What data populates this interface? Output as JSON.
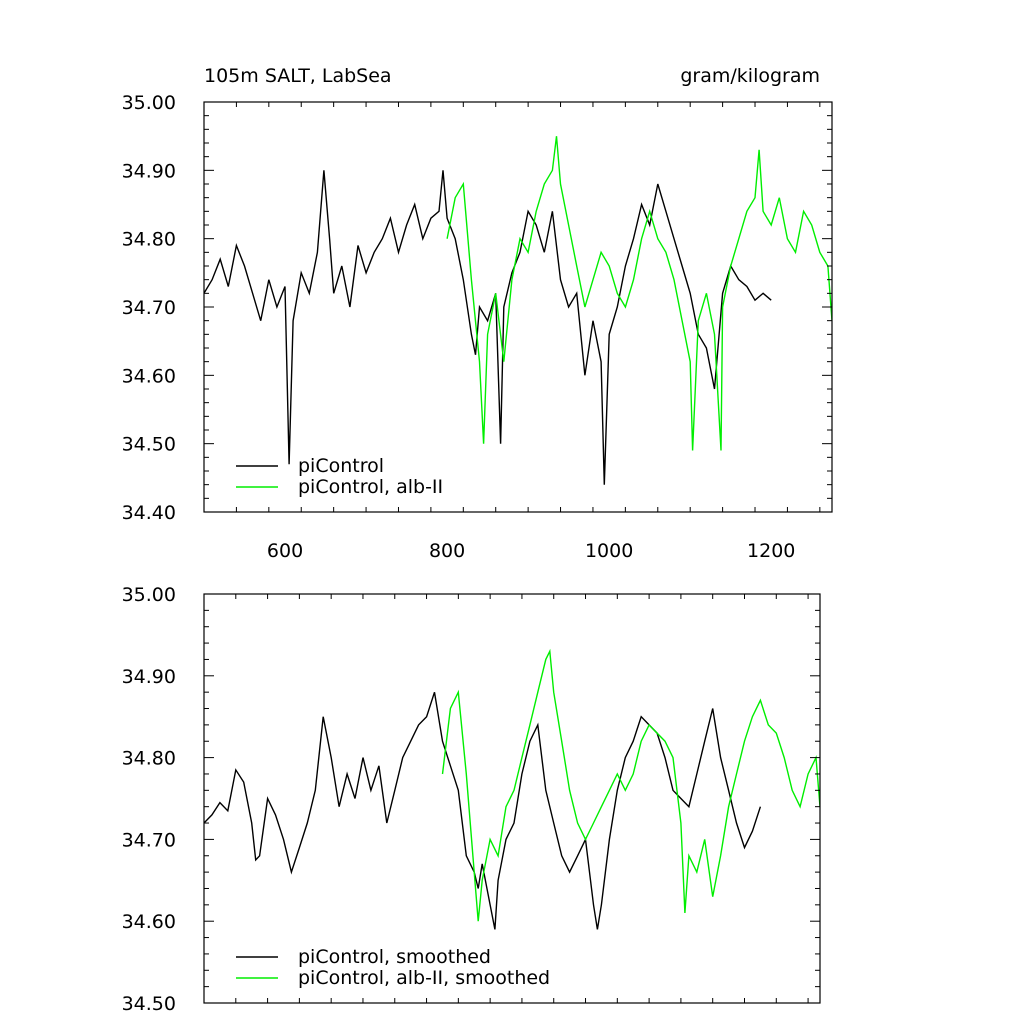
{
  "chart_data": [
    {
      "type": "line",
      "title": "105m SALT, LabSea",
      "units": "gram/kilogram",
      "xlim": [
        500,
        1275
      ],
      "ylim": [
        34.4,
        35.0
      ],
      "xticks": [
        600,
        800,
        1000,
        1200
      ],
      "xtick_labels": [
        "600",
        "800",
        "1000",
        "1200"
      ],
      "yticks": [
        34.4,
        34.5,
        34.6,
        34.7,
        34.8,
        34.9,
        35.0
      ],
      "ytick_labels": [
        "34.40",
        "34.50",
        "34.60",
        "34.70",
        "34.80",
        "34.90",
        "35.00"
      ],
      "legend_position": "bottom-left",
      "series": [
        {
          "name": "piControl",
          "color": "#000000",
          "x": [
            500,
            510,
            520,
            530,
            540,
            550,
            560,
            570,
            580,
            590,
            600,
            605,
            610,
            620,
            630,
            640,
            648,
            655,
            660,
            670,
            680,
            690,
            700,
            710,
            720,
            730,
            740,
            750,
            760,
            770,
            780,
            790,
            795,
            800,
            810,
            820,
            830,
            835,
            840,
            850,
            860,
            866,
            870,
            880,
            890,
            900,
            910,
            920,
            930,
            940,
            950,
            960,
            970,
            980,
            990,
            994,
            1000,
            1010,
            1020,
            1030,
            1040,
            1050,
            1060,
            1070,
            1080,
            1090,
            1100,
            1110,
            1120,
            1130,
            1140,
            1150,
            1160,
            1170,
            1180,
            1190,
            1200
          ],
          "y": [
            34.72,
            34.74,
            34.77,
            34.73,
            34.79,
            34.76,
            34.72,
            34.68,
            34.74,
            34.7,
            34.73,
            34.47,
            34.68,
            34.75,
            34.72,
            34.78,
            34.9,
            34.8,
            34.72,
            34.76,
            34.7,
            34.79,
            34.75,
            34.78,
            34.8,
            34.83,
            34.78,
            34.82,
            34.85,
            34.8,
            34.83,
            34.84,
            34.9,
            34.83,
            34.8,
            34.74,
            34.66,
            34.63,
            34.7,
            34.68,
            34.72,
            34.5,
            34.7,
            34.75,
            34.78,
            34.84,
            34.82,
            34.78,
            34.84,
            34.74,
            34.7,
            34.72,
            34.6,
            34.68,
            34.62,
            34.44,
            34.66,
            34.7,
            34.76,
            34.8,
            34.85,
            34.82,
            34.88,
            34.84,
            34.8,
            34.76,
            34.72,
            34.66,
            34.64,
            34.58,
            34.72,
            34.76,
            34.74,
            34.73,
            34.71,
            34.72,
            34.71
          ]
        },
        {
          "name": "piControl, alb-II",
          "color": "#00ee00",
          "x": [
            800,
            810,
            820,
            830,
            840,
            845,
            850,
            860,
            870,
            880,
            890,
            900,
            910,
            920,
            930,
            935,
            940,
            950,
            960,
            970,
            980,
            990,
            1000,
            1010,
            1020,
            1030,
            1040,
            1050,
            1060,
            1070,
            1080,
            1090,
            1100,
            1103,
            1110,
            1120,
            1130,
            1138,
            1140,
            1150,
            1160,
            1170,
            1180,
            1185,
            1190,
            1200,
            1210,
            1220,
            1230,
            1240,
            1250,
            1260,
            1270,
            1275
          ],
          "y": [
            34.8,
            34.86,
            34.88,
            34.74,
            34.62,
            34.5,
            34.66,
            34.72,
            34.62,
            34.74,
            34.8,
            34.78,
            34.84,
            34.88,
            34.9,
            34.95,
            34.88,
            34.82,
            34.76,
            34.7,
            34.74,
            34.78,
            34.76,
            34.72,
            34.7,
            34.74,
            34.8,
            34.84,
            34.8,
            34.78,
            34.74,
            34.68,
            34.62,
            34.49,
            34.68,
            34.72,
            34.66,
            34.49,
            34.7,
            34.76,
            34.8,
            34.84,
            34.86,
            34.93,
            34.84,
            34.82,
            34.86,
            34.8,
            34.78,
            34.84,
            34.82,
            34.78,
            34.76,
            34.68
          ]
        }
      ]
    },
    {
      "type": "line",
      "xlim": [
        500,
        1275
      ],
      "ylim": [
        34.5,
        35.0
      ],
      "xticks": [
        600,
        800,
        1000,
        1200
      ],
      "yticks": [
        34.5,
        34.6,
        34.7,
        34.8,
        34.9,
        35.0
      ],
      "ytick_labels": [
        "34.50",
        "34.60",
        "34.70",
        "34.80",
        "34.90",
        "35.00"
      ],
      "legend_position": "bottom-left",
      "series": [
        {
          "name": "piControl, smoothed",
          "color": "#000000",
          "x": [
            500,
            510,
            520,
            530,
            540,
            550,
            560,
            565,
            570,
            580,
            590,
            600,
            610,
            620,
            630,
            640,
            650,
            660,
            670,
            680,
            690,
            700,
            710,
            720,
            730,
            740,
            750,
            760,
            770,
            780,
            790,
            800,
            810,
            820,
            830,
            840,
            845,
            850,
            860,
            866,
            870,
            880,
            890,
            900,
            910,
            920,
            930,
            940,
            950,
            960,
            970,
            980,
            990,
            995,
            1000,
            1010,
            1020,
            1030,
            1040,
            1050,
            1060,
            1070,
            1080,
            1090,
            1100,
            1110,
            1120,
            1130,
            1140,
            1150,
            1160,
            1170,
            1180,
            1190,
            1200
          ],
          "y": [
            34.72,
            34.73,
            34.745,
            34.735,
            34.785,
            34.77,
            34.72,
            34.675,
            34.68,
            34.75,
            34.73,
            34.7,
            34.66,
            34.69,
            34.72,
            34.76,
            34.85,
            34.8,
            34.74,
            34.78,
            34.75,
            34.8,
            34.76,
            34.79,
            34.72,
            34.76,
            34.8,
            34.82,
            34.84,
            34.85,
            34.88,
            34.82,
            34.79,
            34.76,
            34.68,
            34.66,
            34.64,
            34.67,
            34.62,
            34.59,
            34.65,
            34.7,
            34.72,
            34.78,
            34.82,
            34.84,
            34.76,
            34.72,
            34.68,
            34.66,
            34.68,
            34.7,
            34.62,
            34.59,
            34.62,
            34.7,
            34.76,
            34.8,
            34.82,
            34.85,
            34.84,
            34.83,
            34.8,
            34.76,
            34.75,
            34.74,
            34.78,
            34.82,
            34.86,
            34.8,
            34.76,
            34.72,
            34.69,
            34.71,
            34.74
          ]
        },
        {
          "name": "piControl, alb-II, smoothed",
          "color": "#00ee00",
          "x": [
            800,
            810,
            820,
            830,
            840,
            845,
            850,
            860,
            870,
            880,
            890,
            900,
            910,
            920,
            930,
            935,
            940,
            950,
            960,
            970,
            980,
            990,
            1000,
            1010,
            1020,
            1030,
            1040,
            1050,
            1060,
            1070,
            1080,
            1090,
            1100,
            1105,
            1110,
            1120,
            1130,
            1140,
            1150,
            1160,
            1170,
            1180,
            1190,
            1200,
            1210,
            1220,
            1230,
            1240,
            1250,
            1260,
            1270,
            1275
          ],
          "y": [
            34.78,
            34.86,
            34.88,
            34.78,
            34.66,
            34.6,
            34.65,
            34.7,
            34.68,
            34.74,
            34.76,
            34.8,
            34.84,
            34.88,
            34.92,
            34.93,
            34.88,
            34.82,
            34.76,
            34.72,
            34.7,
            34.72,
            34.74,
            34.76,
            34.78,
            34.76,
            34.78,
            34.82,
            34.84,
            34.83,
            34.82,
            34.8,
            34.72,
            34.61,
            34.68,
            34.66,
            34.7,
            34.63,
            34.68,
            34.74,
            34.78,
            34.82,
            34.85,
            34.87,
            34.84,
            34.83,
            34.8,
            34.76,
            34.74,
            34.78,
            34.8,
            34.74
          ]
        }
      ]
    }
  ]
}
